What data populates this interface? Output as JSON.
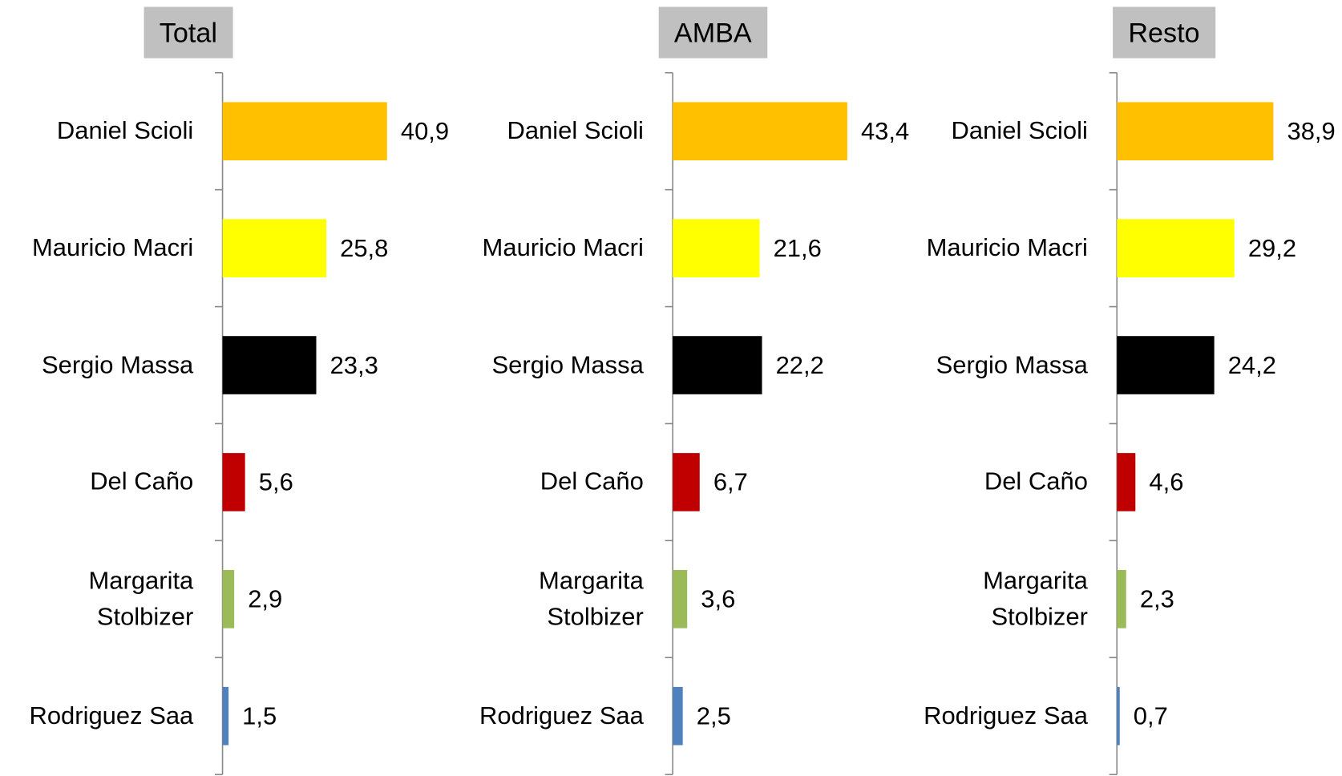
{
  "chart_data": [
    {
      "type": "bar",
      "orientation": "horizontal",
      "title": "Total",
      "categories": [
        "Daniel Scioli",
        "Mauricio Macri",
        "Sergio Massa",
        "Del Caño",
        "Margarita Stolbizer",
        "Rodriguez Saa"
      ],
      "values": [
        40.9,
        25.8,
        23.3,
        5.6,
        2.9,
        1.5
      ],
      "value_labels": [
        "40,9",
        "25,8",
        "23,3",
        "5,6",
        "2,9",
        "1,5"
      ],
      "colors": [
        "#FFC000",
        "#FFFF00",
        "#000000",
        "#C00000",
        "#9BBB59",
        "#4F81BD"
      ],
      "xlim": [
        0,
        100
      ]
    },
    {
      "type": "bar",
      "orientation": "horizontal",
      "title": "AMBA",
      "categories": [
        "Daniel Scioli",
        "Mauricio Macri",
        "Sergio Massa",
        "Del Caño",
        "Margarita Stolbizer",
        "Rodriguez Saa"
      ],
      "values": [
        43.4,
        21.6,
        22.2,
        6.7,
        3.6,
        2.5
      ],
      "value_labels": [
        "43,4",
        "21,6",
        "22,2",
        "6,7",
        "3,6",
        "2,5"
      ],
      "colors": [
        "#FFC000",
        "#FFFF00",
        "#000000",
        "#C00000",
        "#9BBB59",
        "#4F81BD"
      ],
      "xlim": [
        0,
        100
      ]
    },
    {
      "type": "bar",
      "orientation": "horizontal",
      "title": "Resto",
      "categories": [
        "Daniel Scioli",
        "Mauricio Macri",
        "Sergio Massa",
        "Del Caño",
        "Margarita Stolbizer",
        "Rodriguez Saa"
      ],
      "values": [
        38.9,
        29.2,
        24.2,
        4.6,
        2.3,
        0.7
      ],
      "value_labels": [
        "38,9",
        "29,2",
        "24,2",
        "4,6",
        "2,3",
        "0,7"
      ],
      "colors": [
        "#FFC000",
        "#FFFF00",
        "#000000",
        "#C00000",
        "#9BBB59",
        "#4F81BD"
      ],
      "xlim": [
        0,
        100
      ]
    }
  ]
}
